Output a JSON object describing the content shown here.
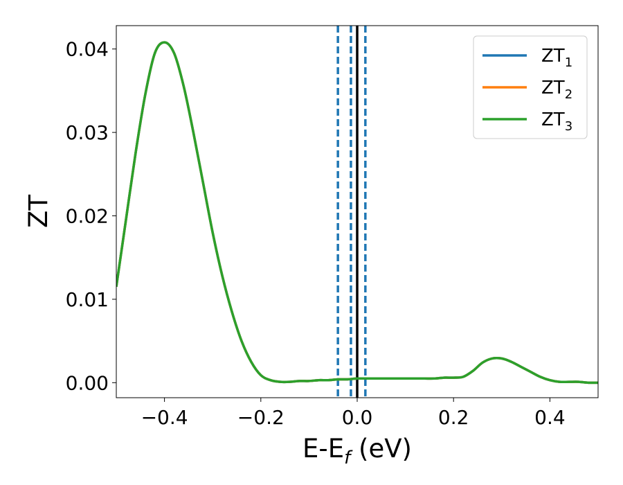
{
  "chart_data": {
    "type": "line",
    "xlabel": {
      "main": "E-E",
      "sub": "f",
      "suffix": " (eV)"
    },
    "ylabel": "ZT",
    "xlim": [
      -0.5,
      0.5
    ],
    "ylim": [
      -0.0018,
      0.0428
    ],
    "xticks": [
      {
        "value": -0.4,
        "label": "−0.4"
      },
      {
        "value": -0.2,
        "label": "−0.2"
      },
      {
        "value": 0.0,
        "label": "0.0"
      },
      {
        "value": 0.2,
        "label": "0.2"
      },
      {
        "value": 0.4,
        "label": "0.4"
      }
    ],
    "yticks": [
      {
        "value": 0.0,
        "label": "0.00"
      },
      {
        "value": 0.01,
        "label": "0.01"
      },
      {
        "value": 0.02,
        "label": "0.02"
      },
      {
        "value": 0.03,
        "label": "0.03"
      },
      {
        "value": 0.04,
        "label": "0.04"
      }
    ],
    "grid": false,
    "legend_position": "top-right",
    "x": [
      -0.5,
      -0.48,
      -0.46,
      -0.44,
      -0.42,
      -0.4,
      -0.38,
      -0.36,
      -0.34,
      -0.32,
      -0.3,
      -0.28,
      -0.26,
      -0.24,
      -0.22,
      -0.2,
      -0.18,
      -0.16,
      -0.14,
      -0.12,
      -0.1,
      -0.08,
      -0.06,
      -0.04,
      -0.02,
      0.0,
      0.02,
      0.04,
      0.06,
      0.08,
      0.1,
      0.12,
      0.14,
      0.16,
      0.18,
      0.2,
      0.22,
      0.24,
      0.26,
      0.28,
      0.3,
      0.32,
      0.34,
      0.36,
      0.38,
      0.4,
      0.42,
      0.44,
      0.46,
      0.48,
      0.5
    ],
    "series": [
      {
        "name": "ZT",
        "sub": "1",
        "color": "#1f77b4",
        "values": [
          0.0115,
          0.0195,
          0.0275,
          0.0345,
          0.0395,
          0.0408,
          0.0395,
          0.0355,
          0.03,
          0.024,
          0.018,
          0.0128,
          0.0085,
          0.005,
          0.0025,
          0.0009,
          0.0003,
          0.0001,
          0.0001,
          0.0002,
          0.0002,
          0.0003,
          0.0003,
          0.0004,
          0.0004,
          0.0005,
          0.0005,
          0.0005,
          0.0005,
          0.0005,
          0.0005,
          0.0005,
          0.0005,
          0.0005,
          0.0006,
          0.0006,
          0.0007,
          0.0014,
          0.0024,
          0.0029,
          0.0029,
          0.0025,
          0.0019,
          0.0013,
          0.0007,
          0.0003,
          0.0001,
          0.0001,
          0.0001,
          0.0,
          0.0
        ]
      },
      {
        "name": "ZT",
        "sub": "2",
        "color": "#ff7f0e",
        "values": [
          0.0115,
          0.0195,
          0.0275,
          0.0345,
          0.0395,
          0.0408,
          0.0395,
          0.0355,
          0.03,
          0.024,
          0.018,
          0.0128,
          0.0085,
          0.005,
          0.0025,
          0.0009,
          0.0003,
          0.0001,
          0.0001,
          0.0002,
          0.0002,
          0.0003,
          0.0003,
          0.0004,
          0.0004,
          0.0005,
          0.0005,
          0.0005,
          0.0005,
          0.0005,
          0.0005,
          0.0005,
          0.0005,
          0.0005,
          0.0006,
          0.0006,
          0.0007,
          0.0014,
          0.0024,
          0.0029,
          0.0029,
          0.0025,
          0.0019,
          0.0013,
          0.0007,
          0.0003,
          0.0001,
          0.0001,
          0.0001,
          0.0,
          0.0
        ]
      },
      {
        "name": "ZT",
        "sub": "3",
        "color": "#2ca02c",
        "values": [
          0.0115,
          0.0195,
          0.0275,
          0.0345,
          0.0395,
          0.0408,
          0.0395,
          0.0355,
          0.03,
          0.024,
          0.018,
          0.0128,
          0.0085,
          0.005,
          0.0025,
          0.0009,
          0.0003,
          0.0001,
          0.0001,
          0.0002,
          0.0002,
          0.0003,
          0.0003,
          0.0004,
          0.0004,
          0.0005,
          0.0005,
          0.0005,
          0.0005,
          0.0005,
          0.0005,
          0.0005,
          0.0005,
          0.0005,
          0.0006,
          0.0006,
          0.0007,
          0.0014,
          0.0024,
          0.0029,
          0.0029,
          0.0025,
          0.0019,
          0.0013,
          0.0007,
          0.0003,
          0.0001,
          0.0001,
          0.0001,
          0.0,
          0.0
        ]
      }
    ],
    "vlines": [
      {
        "x": -0.04,
        "style": "dashed",
        "color": "#1f77b4"
      },
      {
        "x": -0.013,
        "style": "dashed",
        "color": "#1f77b4"
      },
      {
        "x": 0.0,
        "style": "solid",
        "color": "#000000"
      },
      {
        "x": 0.017,
        "style": "dashed",
        "color": "#1f77b4"
      }
    ]
  }
}
